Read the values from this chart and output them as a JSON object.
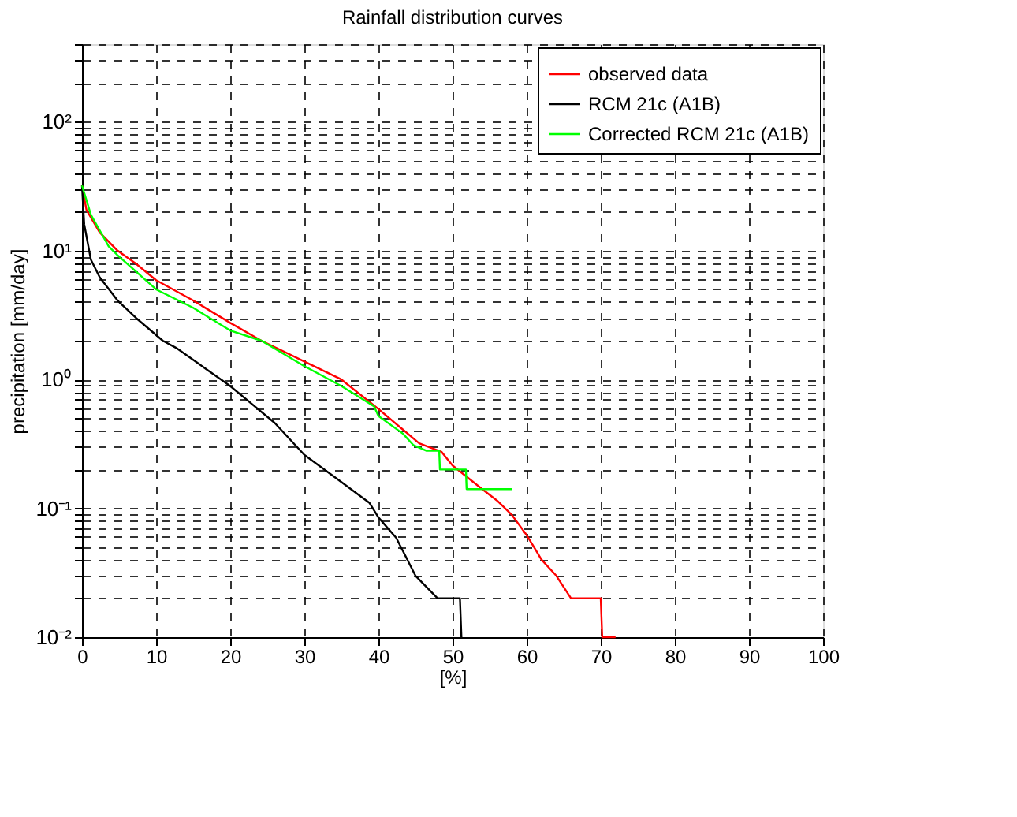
{
  "chart_data": {
    "type": "line",
    "title": "Rainfall distribution curves",
    "xlabel": "[%]",
    "ylabel": "precipitation [mm/day]",
    "log": "y",
    "grid": true,
    "legend": "top right",
    "line_style": "solid",
    "marker": "none",
    "xlim": [
      0,
      100
    ],
    "xticks": [
      0,
      10,
      20,
      30,
      40,
      50,
      60,
      70,
      80,
      90,
      100
    ],
    "ylim": [
      0.01,
      400
    ],
    "yticks": [
      {
        "value": 0.01,
        "label": "10⁻²"
      },
      {
        "value": 0.02,
        "label": null
      },
      {
        "value": 0.03,
        "label": null
      },
      {
        "value": 0.04,
        "label": null
      },
      {
        "value": 0.05,
        "label": null
      },
      {
        "value": 0.06,
        "label": null
      },
      {
        "value": 0.07,
        "label": null
      },
      {
        "value": 0.08,
        "label": null
      },
      {
        "value": 0.09,
        "label": null
      },
      {
        "value": 0.1,
        "label": "10⁻¹"
      },
      {
        "value": 0.2,
        "label": null
      },
      {
        "value": 0.3,
        "label": null
      },
      {
        "value": 0.4,
        "label": null
      },
      {
        "value": 0.5,
        "label": null
      },
      {
        "value": 0.6,
        "label": null
      },
      {
        "value": 0.7,
        "label": null
      },
      {
        "value": 0.8,
        "label": null
      },
      {
        "value": 0.9,
        "label": null
      },
      {
        "value": 1,
        "label": "10⁰"
      },
      {
        "value": 2,
        "label": null
      },
      {
        "value": 3,
        "label": null
      },
      {
        "value": 4,
        "label": null
      },
      {
        "value": 5,
        "label": null
      },
      {
        "value": 6,
        "label": null
      },
      {
        "value": 7,
        "label": null
      },
      {
        "value": 8,
        "label": null
      },
      {
        "value": 9,
        "label": null
      },
      {
        "value": 10,
        "label": "10¹"
      },
      {
        "value": 20,
        "label": null
      },
      {
        "value": 30,
        "label": null
      },
      {
        "value": 40,
        "label": null
      },
      {
        "value": 50,
        "label": null
      },
      {
        "value": 60,
        "label": null
      },
      {
        "value": 70,
        "label": null
      },
      {
        "value": 80,
        "label": null
      },
      {
        "value": 90,
        "label": null
      },
      {
        "value": 100,
        "label": "10²"
      },
      {
        "value": 200,
        "label": null
      },
      {
        "value": 300,
        "label": null
      },
      {
        "value": 400,
        "label": null
      }
    ],
    "series": [
      {
        "name": "observed data",
        "color": "#ff0000",
        "x": [
          0,
          0.6,
          2.4,
          4.8,
          7.3,
          10,
          15,
          20,
          24.2,
          30,
          35,
          40,
          45.5,
          48.5,
          50,
          53.8,
          56,
          58,
          60,
          61,
          62,
          64,
          66,
          70,
          70.2,
          72
        ],
        "values": [
          32,
          20.7,
          13.8,
          10,
          7.9,
          5.9,
          4.1,
          2.75,
          2.0,
          1.38,
          1.0,
          0.59,
          0.32,
          0.275,
          0.215,
          0.144,
          0.115,
          0.089,
          0.062,
          0.05,
          0.04,
          0.03,
          0.02,
          0.02,
          0.01,
          0.01
        ]
      },
      {
        "name": "RCM 21c (A1B)",
        "color": "#000000",
        "x": [
          0,
          0.3,
          1.2,
          2.4,
          4.8,
          7.3,
          10.9,
          12.7,
          20,
          26,
          30,
          35,
          38.8,
          40,
          42.4,
          45,
          48,
          51,
          51.2
        ],
        "values": [
          32,
          16,
          8.5,
          6.2,
          4.1,
          3.0,
          2.0,
          1.76,
          0.89,
          0.46,
          0.26,
          0.16,
          0.11,
          0.085,
          0.059,
          0.03,
          0.02,
          0.02,
          0.01
        ]
      },
      {
        "name": "Corrected RCM 21c (A1B)",
        "color": "#00ff00",
        "x": [
          0,
          1.2,
          3.6,
          4.8,
          10,
          15,
          20,
          24.2,
          30,
          35,
          39.4,
          40,
          43.3,
          44.7,
          46.5,
          48.2,
          48.3,
          51.8,
          51.9,
          58
        ],
        "values": [
          32,
          19,
          10.8,
          9.2,
          5.0,
          3.6,
          2.4,
          2.0,
          1.27,
          0.89,
          0.62,
          0.52,
          0.38,
          0.31,
          0.28,
          0.28,
          0.2,
          0.2,
          0.141,
          0.141
        ]
      }
    ]
  }
}
